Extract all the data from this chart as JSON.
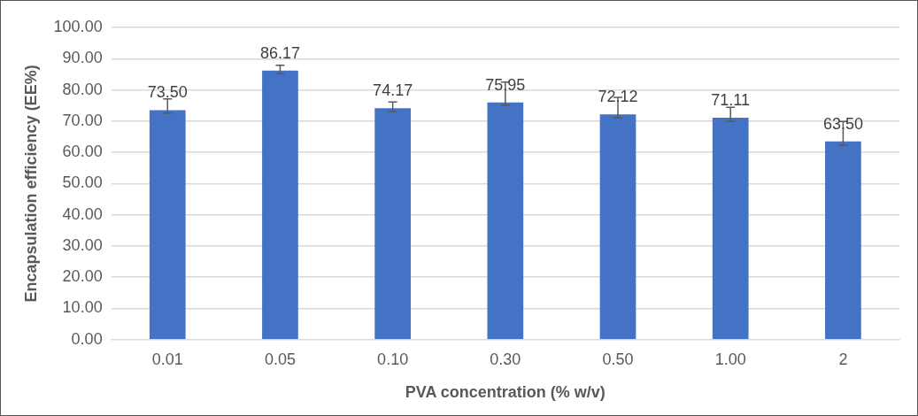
{
  "chart_data": {
    "type": "bar",
    "xlabel": "PVA concentration (% w/v)",
    "ylabel": "Encapsulation efficiency (EE%)",
    "categories": [
      "0.01",
      "0.05",
      "0.10",
      "0.30",
      "0.50",
      "1.00",
      "2"
    ],
    "values": [
      73.5,
      86.17,
      74.17,
      75.95,
      72.12,
      71.11,
      63.5
    ],
    "errors": [
      [
        72.6,
        77.1
      ],
      [
        85.2,
        87.9
      ],
      [
        73.1,
        76.1
      ],
      [
        75.1,
        82.5
      ],
      [
        71.1,
        77.6
      ],
      [
        69.9,
        74.4
      ],
      [
        62.4,
        69.9
      ]
    ],
    "value_labels": [
      "73.50",
      "86.17",
      "74.17",
      "75.95",
      "72.12",
      "71.11",
      "63.50"
    ],
    "color": "#4472c4",
    "ylim": [
      0,
      100
    ],
    "yticks": [
      {
        "value": 0,
        "label": "0.00"
      },
      {
        "value": 10,
        "label": "10.00"
      },
      {
        "value": 20,
        "label": "20.00"
      },
      {
        "value": 30,
        "label": "30.00"
      },
      {
        "value": 40,
        "label": "40.00"
      },
      {
        "value": 50,
        "label": "50.00"
      },
      {
        "value": 60,
        "label": "60.00"
      },
      {
        "value": 70,
        "label": "70.00"
      },
      {
        "value": 80,
        "label": "80.00"
      },
      {
        "value": 90,
        "label": "90.00"
      },
      {
        "value": 100,
        "label": "100.00"
      }
    ],
    "grid": "y",
    "legend": false
  }
}
